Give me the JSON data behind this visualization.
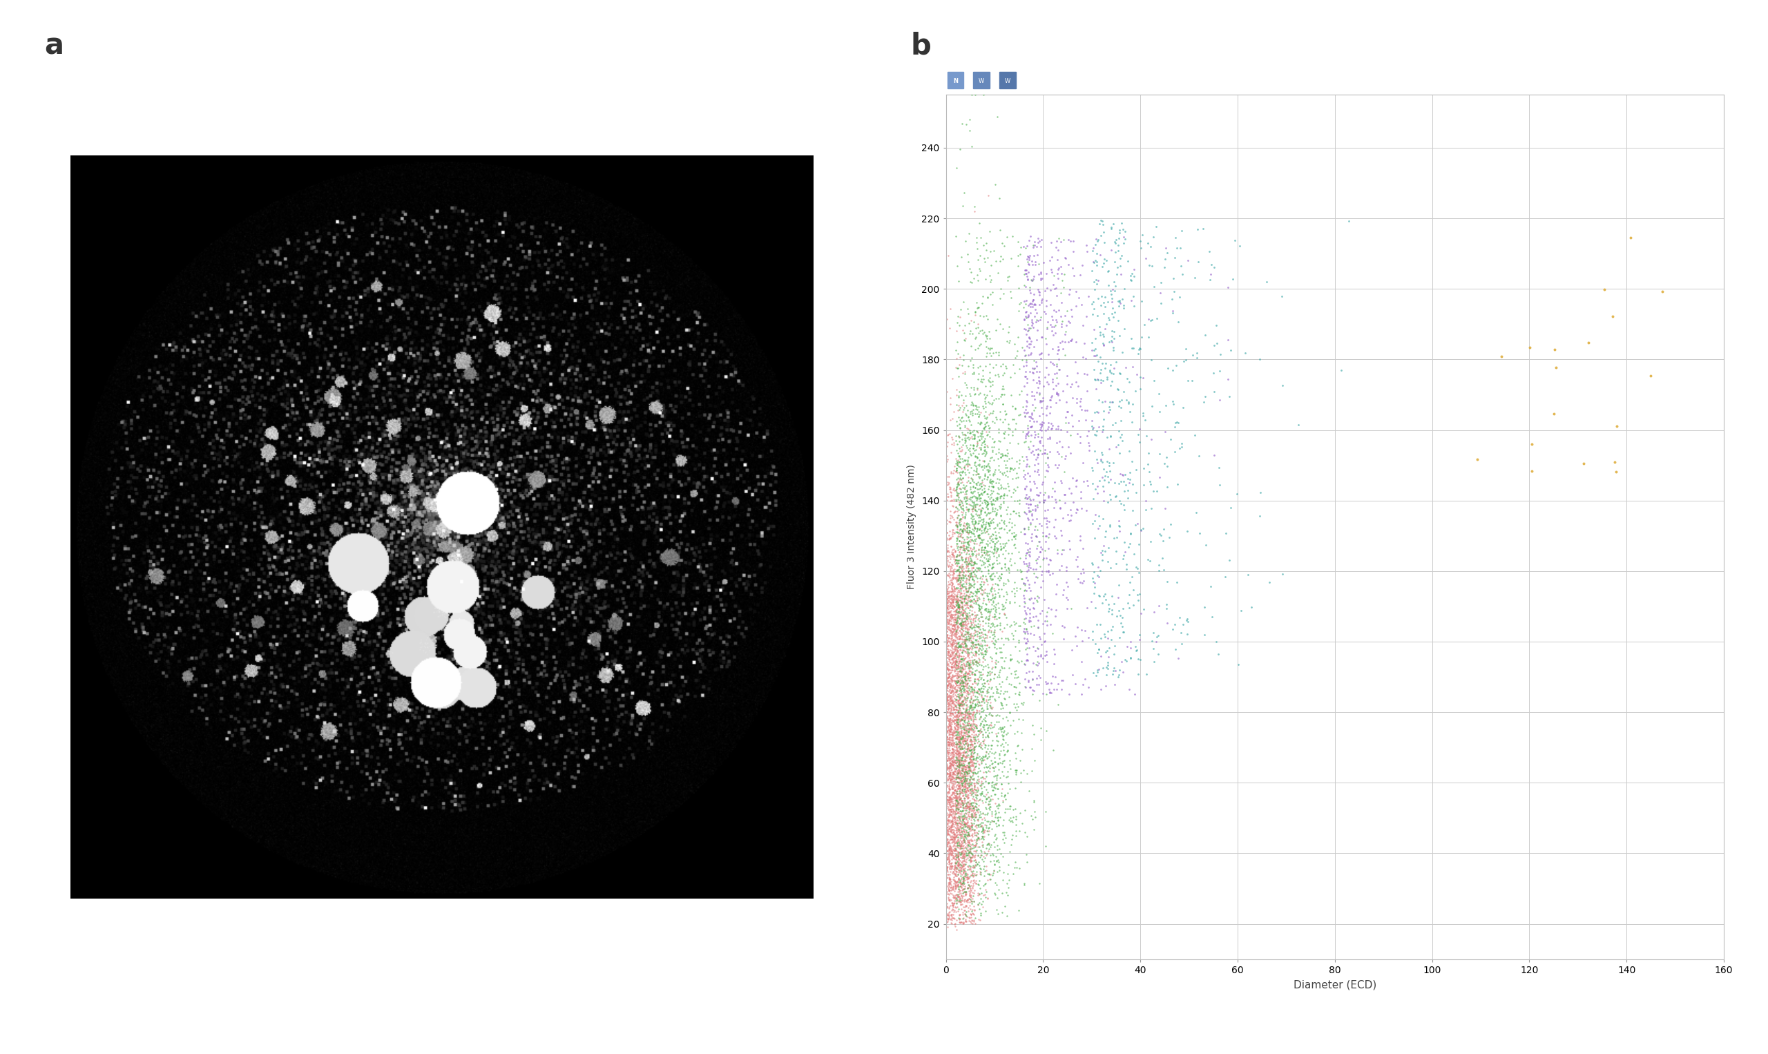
{
  "panel_a_label": "a",
  "panel_b_label": "b",
  "scatter_xlabel": "Diameter (ECD)",
  "scatter_ylabel": "Fluor 3 Intensity (482 nm)",
  "scatter_xlim": [
    0,
    160
  ],
  "scatter_ylim": [
    10,
    255
  ],
  "scatter_xticks": [
    0,
    20,
    40,
    60,
    80,
    100,
    120,
    140,
    160
  ],
  "scatter_yticks": [
    20,
    40,
    60,
    80,
    100,
    120,
    140,
    160,
    180,
    200,
    220,
    240
  ],
  "plot_bg_color": "#ffffff",
  "colors": {
    "pink": "#e07878",
    "green": "#44aa44",
    "purple": "#9966cc",
    "cyan": "#44aaaa",
    "orange": "#ddaa33"
  },
  "seed": 42,
  "toolbar_color": "#5577aa",
  "img_size": 700
}
